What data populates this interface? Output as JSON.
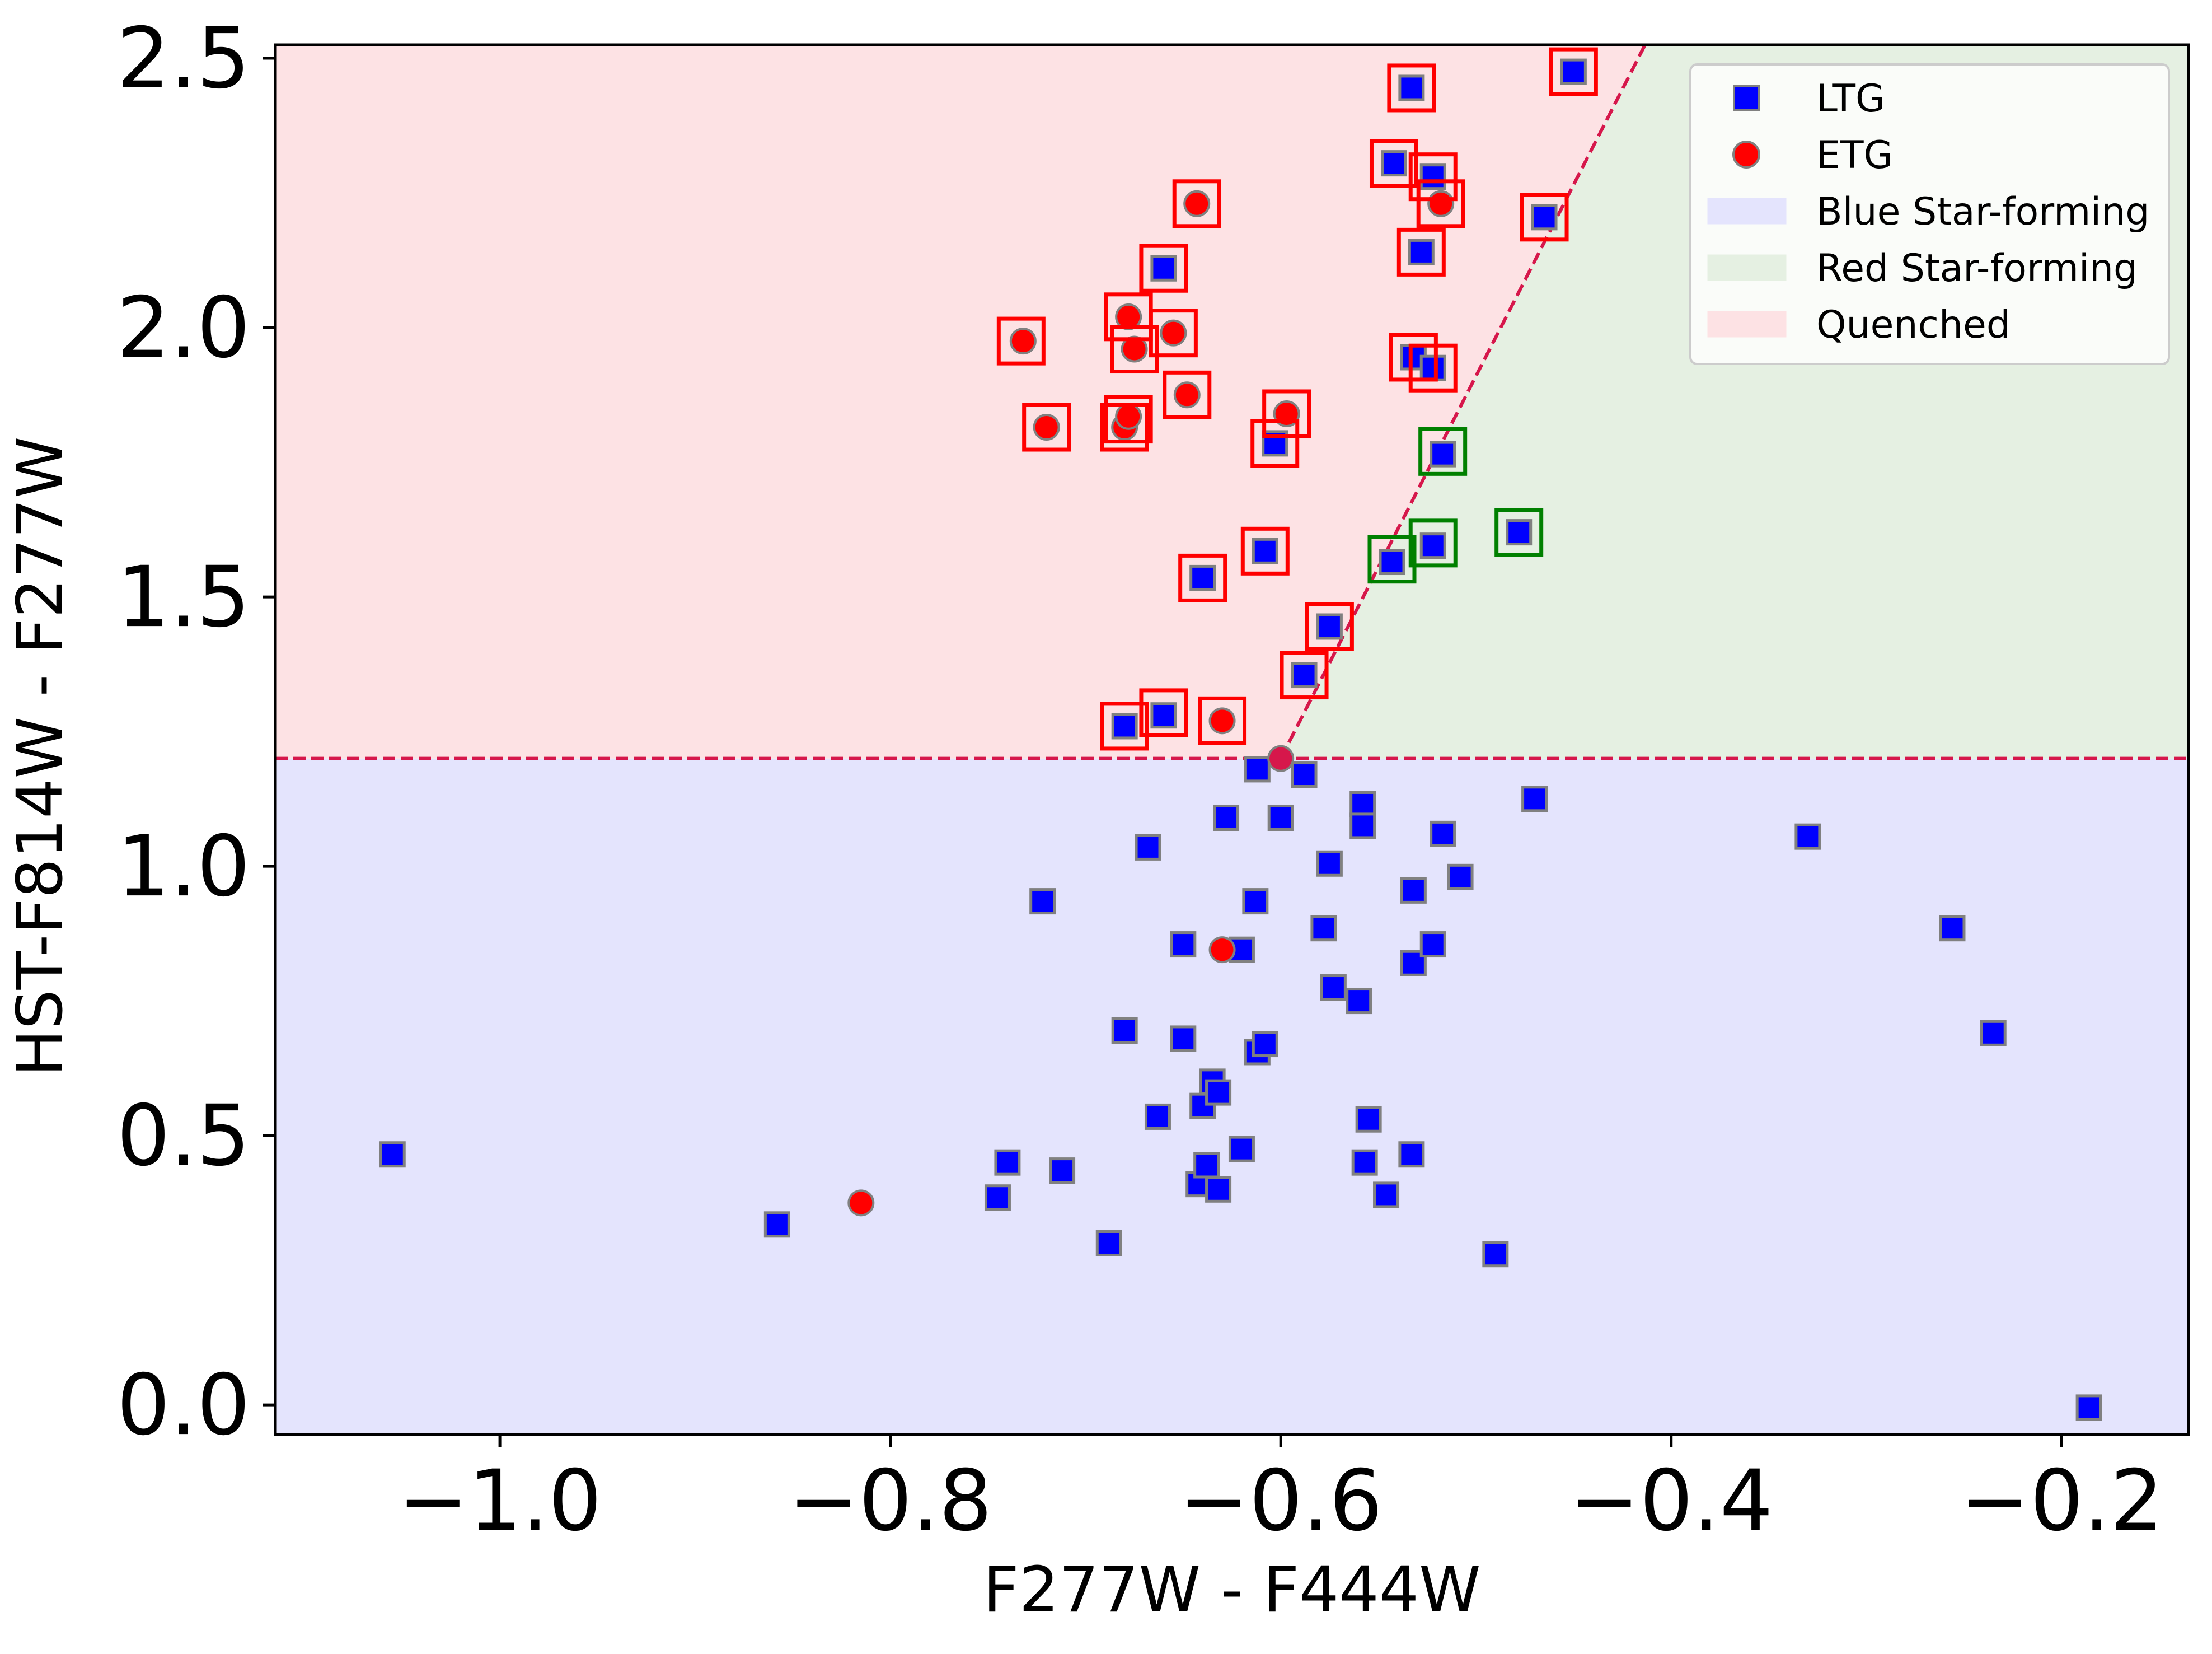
{
  "chart_data": {
    "type": "scatter",
    "xlabel": "F277W - F444W",
    "ylabel": "HST-F814W - F277W",
    "xlim": [
      -1.115,
      -0.135
    ],
    "ylim": [
      -0.055,
      2.525
    ],
    "xticks": [
      {
        "value": -1.0,
        "label": "−1.0"
      },
      {
        "value": -0.8,
        "label": "−0.8"
      },
      {
        "value": -0.6,
        "label": "−0.6"
      },
      {
        "value": -0.4,
        "label": "−0.4"
      },
      {
        "value": -0.2,
        "label": "−0.2"
      }
    ],
    "yticks": [
      {
        "value": 0.0,
        "label": "0.0"
      },
      {
        "value": 0.5,
        "label": "0.5"
      },
      {
        "value": 1.0,
        "label": "1.0"
      },
      {
        "value": 1.5,
        "label": "1.5"
      },
      {
        "value": 2.0,
        "label": "2.0"
      },
      {
        "value": 2.5,
        "label": "2.5"
      }
    ],
    "threshold": {
      "y": 1.2,
      "vertex": [
        -0.6,
        1.2
      ],
      "slope": 7.1,
      "color": "#d6174b"
    },
    "regions": [
      {
        "name": "Blue Star-forming",
        "color": "#e4e4fd"
      },
      {
        "name": "Red Star-forming",
        "color": "#e5f0e2"
      },
      {
        "name": "Quenched",
        "color": "#fde2e4"
      }
    ],
    "legend": {
      "placement": "top-right",
      "entries": [
        {
          "label": "LTG",
          "kind": "square",
          "color": "#0000ff"
        },
        {
          "label": "ETG",
          "kind": "circle",
          "color": "#ff0000"
        },
        {
          "label": "Blue Star-forming",
          "kind": "patch",
          "color": "#e4e4fd"
        },
        {
          "label": "Red Star-forming",
          "kind": "patch",
          "color": "#e5f0e2"
        },
        {
          "label": "Quenched",
          "kind": "patch",
          "color": "#fde2e4"
        }
      ]
    },
    "series": [
      {
        "name": "LTG",
        "marker": "square",
        "color": "#0000ff",
        "edge": "#808080",
        "points": [
          [
            -1.055,
            0.465
          ],
          [
            -0.858,
            0.335
          ],
          [
            -0.745,
            0.385
          ],
          [
            -0.74,
            0.45
          ],
          [
            -0.712,
            0.435
          ],
          [
            -0.722,
            0.935
          ],
          [
            -0.688,
            0.3
          ],
          [
            -0.68,
            0.695
          ],
          [
            -0.668,
            1.035
          ],
          [
            -0.663,
            0.535
          ],
          [
            -0.65,
            0.855
          ],
          [
            -0.65,
            0.68
          ],
          [
            -0.642,
            0.41
          ],
          [
            -0.64,
            0.555
          ],
          [
            -0.638,
            0.445
          ],
          [
            -0.635,
            0.6
          ],
          [
            -0.632,
            0.4
          ],
          [
            -0.632,
            0.58
          ],
          [
            -0.628,
            1.09
          ],
          [
            -0.62,
            0.845
          ],
          [
            -0.62,
            0.475
          ],
          [
            -0.613,
            0.935
          ],
          [
            -0.612,
            1.18
          ],
          [
            -0.612,
            0.655
          ],
          [
            -0.608,
            0.67
          ],
          [
            -0.6,
            1.09
          ],
          [
            -0.588,
            1.17
          ],
          [
            -0.578,
            0.885
          ],
          [
            -0.575,
            1.005
          ],
          [
            -0.573,
            0.775
          ],
          [
            -0.56,
            0.75
          ],
          [
            -0.558,
            1.115
          ],
          [
            -0.558,
            1.075
          ],
          [
            -0.557,
            0.45
          ],
          [
            -0.555,
            0.53
          ],
          [
            -0.546,
            0.39
          ],
          [
            -0.533,
            0.465
          ],
          [
            -0.532,
            0.82
          ],
          [
            -0.532,
            0.955
          ],
          [
            -0.522,
            0.855
          ],
          [
            -0.517,
            1.06
          ],
          [
            -0.508,
            0.98
          ],
          [
            -0.49,
            0.28
          ],
          [
            -0.47,
            1.125
          ],
          [
            -0.33,
            1.055
          ],
          [
            -0.256,
            0.885
          ],
          [
            -0.235,
            0.69
          ],
          [
            -0.186,
            -0.005
          ],
          [
            -0.68,
            1.26
          ],
          [
            -0.66,
            1.28
          ],
          [
            -0.588,
            1.355
          ],
          [
            -0.575,
            1.445
          ],
          [
            -0.64,
            1.535
          ],
          [
            -0.608,
            1.585
          ],
          [
            -0.603,
            1.785
          ],
          [
            -0.543,
            1.565
          ],
          [
            -0.522,
            1.595
          ],
          [
            -0.517,
            1.765
          ],
          [
            -0.478,
            1.62
          ],
          [
            -0.66,
            2.11
          ],
          [
            -0.532,
            1.945
          ],
          [
            -0.522,
            1.925
          ],
          [
            -0.528,
            2.14
          ],
          [
            -0.542,
            2.305
          ],
          [
            -0.522,
            2.28
          ],
          [
            -0.465,
            2.205
          ],
          [
            -0.533,
            2.445
          ],
          [
            -0.45,
            2.475
          ]
        ]
      },
      {
        "name": "ETG",
        "marker": "circle",
        "color": "#ff0000",
        "edge": "#808080",
        "points": [
          [
            -0.815,
            0.375
          ],
          [
            -0.63,
            0.845
          ],
          [
            -0.6,
            1.2
          ],
          [
            -0.732,
            1.975
          ],
          [
            -0.72,
            1.815
          ],
          [
            -0.68,
            1.815
          ],
          [
            -0.678,
            1.835
          ],
          [
            -0.678,
            2.02
          ],
          [
            -0.675,
            1.96
          ],
          [
            -0.655,
            1.99
          ],
          [
            -0.648,
            1.875
          ],
          [
            -0.643,
            2.23
          ],
          [
            -0.63,
            1.27
          ],
          [
            -0.597,
            1.84
          ],
          [
            -0.518,
            2.23
          ]
        ]
      }
    ],
    "highlight_boxes": [
      {
        "color": "#ff0000",
        "points": [
          [
            -0.733,
            1.975
          ],
          [
            -0.72,
            1.815
          ],
          [
            -0.68,
            1.815
          ],
          [
            -0.678,
            1.83
          ],
          [
            -0.678,
            2.02
          ],
          [
            -0.675,
            1.96
          ],
          [
            -0.655,
            1.99
          ],
          [
            -0.648,
            1.875
          ],
          [
            -0.643,
            2.23
          ],
          [
            -0.66,
            2.11
          ],
          [
            -0.68,
            1.26
          ],
          [
            -0.66,
            1.285
          ],
          [
            -0.63,
            1.27
          ],
          [
            -0.64,
            1.535
          ],
          [
            -0.608,
            1.585
          ],
          [
            -0.603,
            1.785
          ],
          [
            -0.597,
            1.84
          ],
          [
            -0.588,
            1.355
          ],
          [
            -0.575,
            1.445
          ],
          [
            -0.542,
            2.305
          ],
          [
            -0.533,
            2.445
          ],
          [
            -0.528,
            2.14
          ],
          [
            -0.522,
            2.28
          ],
          [
            -0.518,
            2.23
          ],
          [
            -0.532,
            1.945
          ],
          [
            -0.522,
            1.925
          ],
          [
            -0.465,
            2.205
          ],
          [
            -0.45,
            2.475
          ]
        ]
      },
      {
        "color": "#008000",
        "points": [
          [
            -0.543,
            1.57
          ],
          [
            -0.522,
            1.6
          ],
          [
            -0.517,
            1.77
          ],
          [
            -0.478,
            1.62
          ]
        ]
      }
    ]
  }
}
